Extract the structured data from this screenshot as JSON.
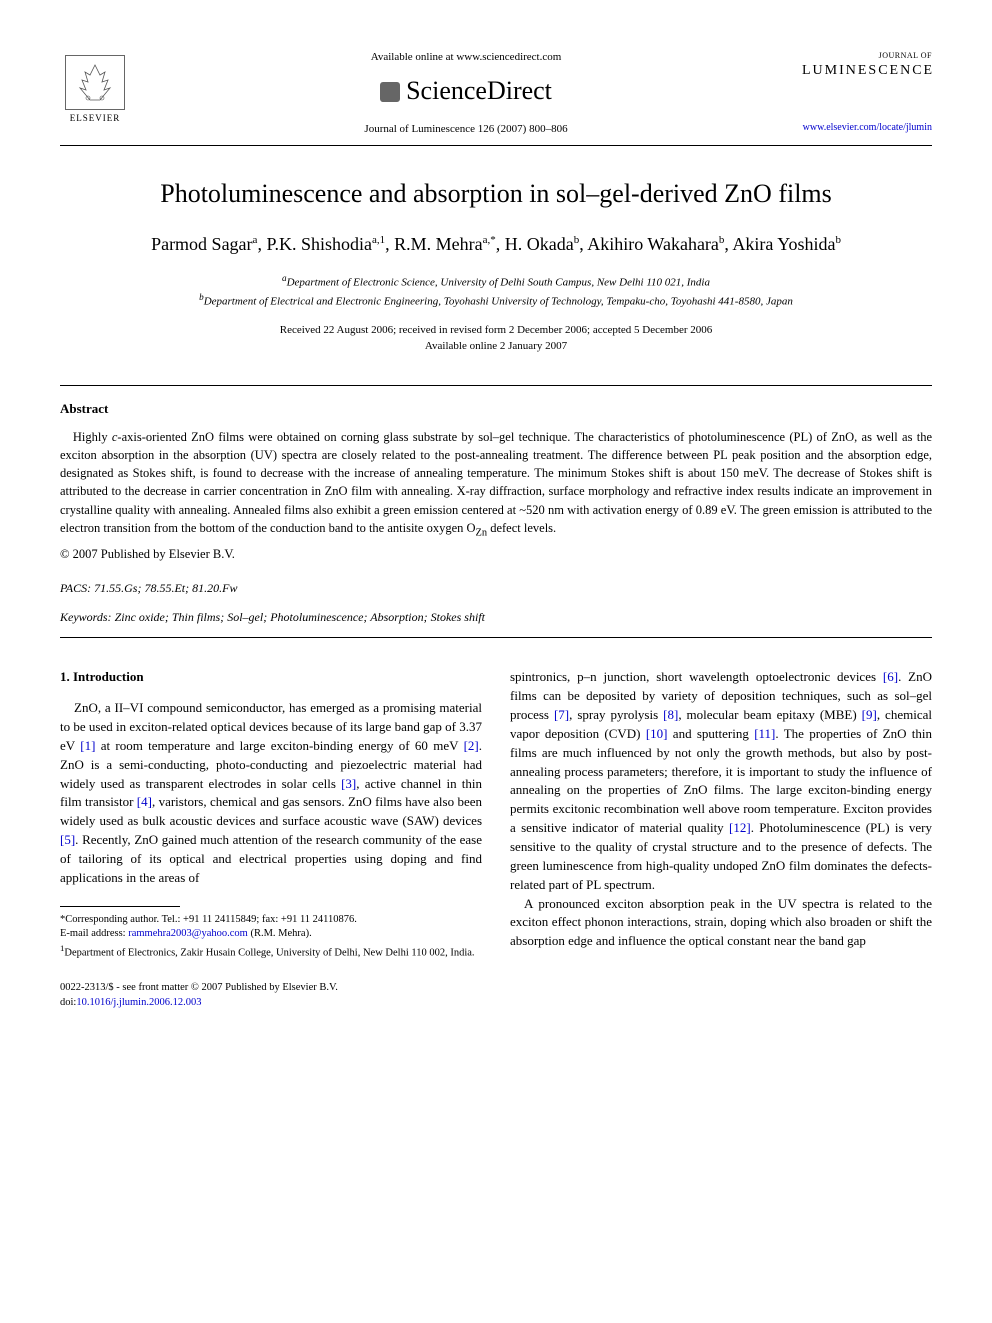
{
  "header": {
    "publisher_name": "ELSEVIER",
    "available_text": "Available online at www.sciencedirect.com",
    "platform_name": "ScienceDirect",
    "journal_ref": "Journal of Luminescence 126 (2007) 800–806",
    "journal_logo_top": "JOURNAL OF",
    "journal_logo_main": "LUMINESCENCE",
    "journal_url": "www.elsevier.com/locate/jlumin"
  },
  "article": {
    "title": "Photoluminescence and absorption in sol–gel-derived ZnO films",
    "authors_html": "Parmod Sagar<sup>a</sup>, P.K. Shishodia<sup>a,1</sup>, R.M. Mehra<sup>a,*</sup>, H. Okada<sup>b</sup>, Akihiro Wakahara<sup>b</sup>, Akira Yoshida<sup>b</sup>",
    "affil_a": "Department of Electronic Science, University of Delhi South Campus, New Delhi 110 021, India",
    "affil_b": "Department of Electrical and Electronic Engineering, Toyohashi University of Technology, Tempaku-cho, Toyohashi 441-8580, Japan",
    "dates_line1": "Received 22 August 2006; received in revised form 2 December 2006; accepted 5 December 2006",
    "dates_line2": "Available online 2 January 2007"
  },
  "abstract": {
    "heading": "Abstract",
    "text": "Highly c-axis-oriented ZnO films were obtained on corning glass substrate by sol–gel technique. The characteristics of photoluminescence (PL) of ZnO, as well as the exciton absorption in the absorption (UV) spectra are closely related to the post-annealing treatment. The difference between PL peak position and the absorption edge, designated as Stokes shift, is found to decrease with the increase of annealing temperature. The minimum Stokes shift is about 150 meV. The decrease of Stokes shift is attributed to the decrease in carrier concentration in ZnO film with annealing. X-ray diffraction, surface morphology and refractive index results indicate an improvement in crystalline quality with annealing. Annealed films also exhibit a green emission centered at ~520 nm with activation energy of 0.89 eV. The green emission is attributed to the electron transition from the bottom of the conduction band to the antisite oxygen OZn defect levels.",
    "copyright": "© 2007 Published by Elsevier B.V.",
    "pacs_label": "PACS:",
    "pacs": "71.55.Gs; 78.55.Et; 81.20.Fw",
    "keywords_label": "Keywords:",
    "keywords": "Zinc oxide; Thin films; Sol–gel; Photoluminescence; Absorption; Stokes shift"
  },
  "body": {
    "section_heading": "1. Introduction",
    "col1_para": "ZnO, a II–VI compound semiconductor, has emerged as a promising material to be used in exciton-related optical devices because of its large band gap of 3.37 eV [1] at room temperature and large exciton-binding energy of 60 meV [2]. ZnO is a semi-conducting, photo-conducting and piezoelectric material had widely used as transparent electrodes in solar cells [3], active channel in thin film transistor [4], varistors, chemical and gas sensors. ZnO films have also been widely used as bulk acoustic devices and surface acoustic wave (SAW) devices [5]. Recently, ZnO gained much attention of the research community of the ease of tailoring of its optical and electrical properties using doping and find applications in the areas of",
    "col2_para1": "spintronics, p–n junction, short wavelength optoelectronic devices [6]. ZnO films can be deposited by variety of deposition techniques, such as sol–gel process [7], spray pyrolysis [8], molecular beam epitaxy (MBE) [9], chemical vapor deposition (CVD) [10] and sputtering [11]. The properties of ZnO thin films are much influenced by not only the growth methods, but also by post-annealing process parameters; therefore, it is important to study the influence of annealing on the properties of ZnO films. The large exciton-binding energy permits excitonic recombination well above room temperature. Exciton provides a sensitive indicator of material quality [12]. Photoluminescence (PL) is very sensitive to the quality of crystal structure and to the presence of defects. The green luminescence from high-quality undoped ZnO film dominates the defects-related part of PL spectrum.",
    "col2_para2": "A pronounced exciton absorption peak in the UV spectra is related to the exciton effect phonon interactions, strain, doping which also broaden or shift the absorption edge and influence the optical constant near the band gap"
  },
  "footnotes": {
    "corr": "*Corresponding author. Tel.: +91 11 24115849; fax: +91 11 24110876.",
    "email_label": "E-mail address:",
    "email": "rammehra2003@yahoo.com",
    "email_name": "(R.M. Mehra).",
    "note1": "Department of Electronics, Zakir Husain College, University of Delhi, New Delhi 110 002, India."
  },
  "bottom": {
    "line1": "0022-2313/$ - see front matter © 2007 Published by Elsevier B.V.",
    "doi_label": "doi:",
    "doi": "10.1016/j.jlumin.2006.12.003"
  },
  "refs": [
    "[1]",
    "[2]",
    "[3]",
    "[4]",
    "[5]",
    "[6]",
    "[7]",
    "[8]",
    "[9]",
    "[10]",
    "[11]",
    "[12]"
  ],
  "colors": {
    "link": "#0000cc",
    "text": "#000000",
    "background": "#ffffff"
  }
}
